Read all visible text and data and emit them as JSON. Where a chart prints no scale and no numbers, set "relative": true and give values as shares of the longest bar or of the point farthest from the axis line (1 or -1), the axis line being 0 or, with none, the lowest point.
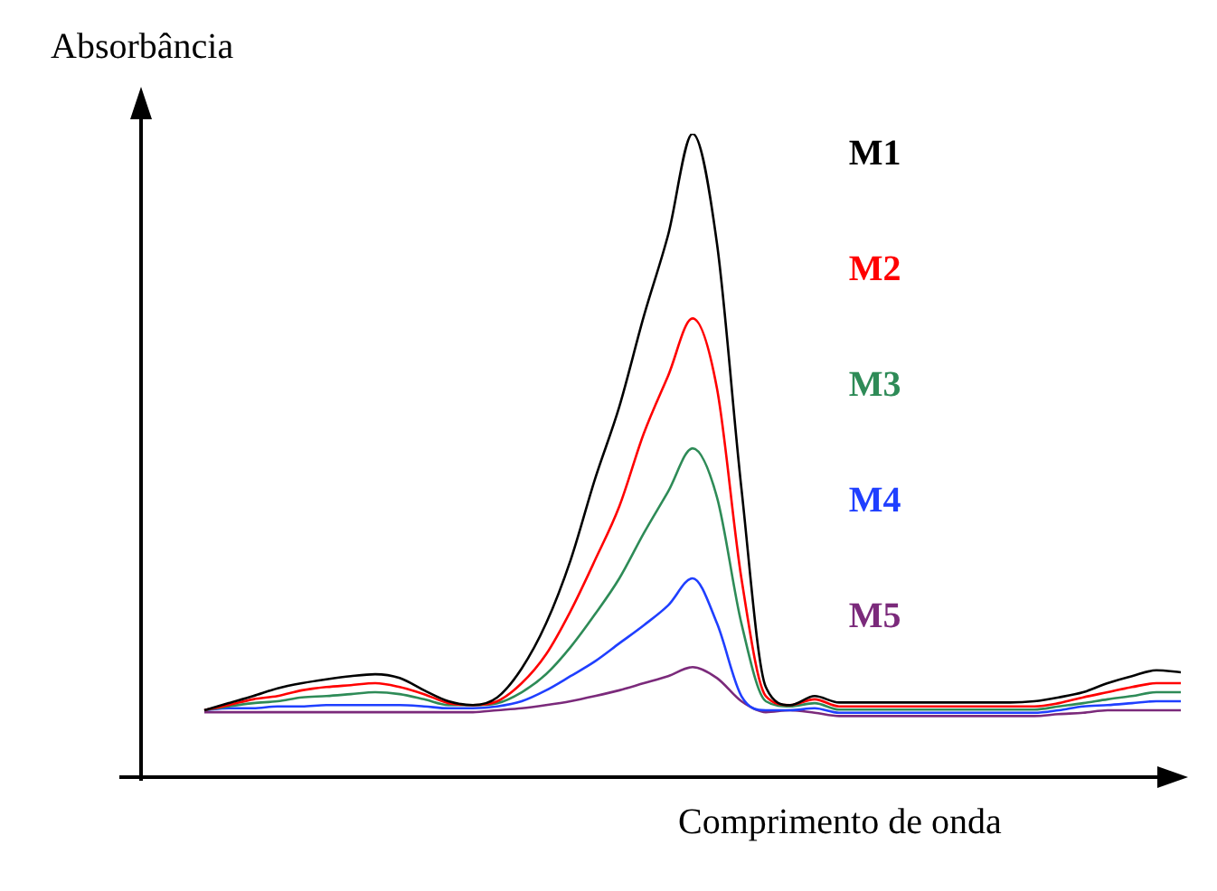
{
  "chart_data": {
    "type": "line",
    "relative": true,
    "xlabel": "Comprimento de onda",
    "ylabel": "Absorbância",
    "marker": "none",
    "line_style": "solid",
    "grid": false,
    "legend": false,
    "categories": [
      null,
      null,
      null,
      null,
      null,
      null,
      null,
      null,
      null,
      null,
      null,
      null,
      null,
      null,
      null,
      null,
      null,
      null,
      null,
      null,
      null,
      null,
      null,
      null,
      null,
      null,
      null,
      null,
      null,
      null,
      null,
      null,
      null,
      null,
      null,
      null,
      null,
      null,
      null,
      null,
      null
    ],
    "series": [
      {
        "name": "M1",
        "color": "#000000",
        "values": [
          0.104,
          0.115,
          0.126,
          0.138,
          0.146,
          0.152,
          0.157,
          0.16,
          0.154,
          0.135,
          0.118,
          0.112,
          0.124,
          0.169,
          0.239,
          0.337,
          0.463,
          0.576,
          0.716,
          0.843,
          1,
          0.829,
          0.449,
          0.14,
          0.112,
          0.126,
          0.116,
          0.116,
          0.116,
          0.116,
          0.116,
          0.116,
          0.116,
          0.116,
          0.118,
          0.124,
          0.132,
          0.146,
          0.157,
          0.166,
          0.163
        ]
      },
      {
        "name": "M2",
        "color": "#ff0000",
        "values": [
          0.104,
          0.112,
          0.121,
          0.126,
          0.135,
          0.14,
          0.143,
          0.146,
          0.14,
          0.129,
          0.115,
          0.112,
          0.118,
          0.146,
          0.191,
          0.258,
          0.337,
          0.421,
          0.534,
          0.624,
          0.713,
          0.604,
          0.309,
          0.126,
          0.112,
          0.121,
          0.11,
          0.11,
          0.11,
          0.11,
          0.11,
          0.11,
          0.11,
          0.11,
          0.11,
          0.115,
          0.124,
          0.132,
          0.14,
          0.146,
          0.146
        ]
      },
      {
        "name": "M3",
        "color": "#2e8b57",
        "values": [
          0.104,
          0.11,
          0.115,
          0.118,
          0.124,
          0.126,
          0.129,
          0.132,
          0.129,
          0.121,
          0.112,
          0.112,
          0.115,
          0.132,
          0.16,
          0.202,
          0.253,
          0.309,
          0.379,
          0.444,
          0.511,
          0.435,
          0.239,
          0.118,
          0.11,
          0.115,
          0.105,
          0.105,
          0.105,
          0.105,
          0.105,
          0.105,
          0.105,
          0.105,
          0.105,
          0.11,
          0.115,
          0.121,
          0.126,
          0.132,
          0.132
        ]
      },
      {
        "name": "M4",
        "color": "#1f3fff",
        "values": [
          0.104,
          0.107,
          0.107,
          0.11,
          0.11,
          0.112,
          0.112,
          0.112,
          0.112,
          0.11,
          0.107,
          0.107,
          0.11,
          0.118,
          0.135,
          0.157,
          0.18,
          0.208,
          0.236,
          0.267,
          0.309,
          0.239,
          0.126,
          0.104,
          0.104,
          0.107,
          0.1,
          0.1,
          0.1,
          0.1,
          0.1,
          0.1,
          0.1,
          0.1,
          0.1,
          0.104,
          0.11,
          0.112,
          0.115,
          0.118,
          0.118
        ]
      },
      {
        "name": "M5",
        "color": "#7b2a7b",
        "values": [
          0.101,
          0.101,
          0.101,
          0.101,
          0.101,
          0.101,
          0.101,
          0.101,
          0.101,
          0.101,
          0.101,
          0.101,
          0.104,
          0.107,
          0.112,
          0.118,
          0.126,
          0.135,
          0.146,
          0.157,
          0.171,
          0.154,
          0.118,
          0.101,
          0.104,
          0.1,
          0.095,
          0.095,
          0.095,
          0.095,
          0.095,
          0.095,
          0.095,
          0.095,
          0.095,
          0.098,
          0.1,
          0.104,
          0.104,
          0.104,
          0.104
        ]
      }
    ]
  }
}
